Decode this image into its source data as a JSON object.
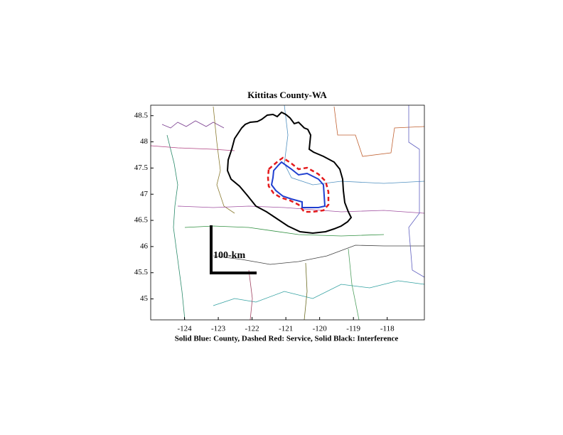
{
  "chart_data": {
    "type": "map",
    "title": "Kittitas County-WA",
    "xlabel": "Solid Blue: County, Dashed Red: Service, Solid Black: Interference",
    "scale_label": "100-km",
    "xlim": [
      -125,
      -116.9
    ],
    "ylim": [
      44.6,
      48.7
    ],
    "xticks": [
      -124,
      -123,
      -122,
      -121,
      -120,
      -119,
      -118
    ],
    "yticks": [
      45,
      45.5,
      46,
      46.5,
      47,
      47.5,
      48,
      48.5
    ]
  }
}
